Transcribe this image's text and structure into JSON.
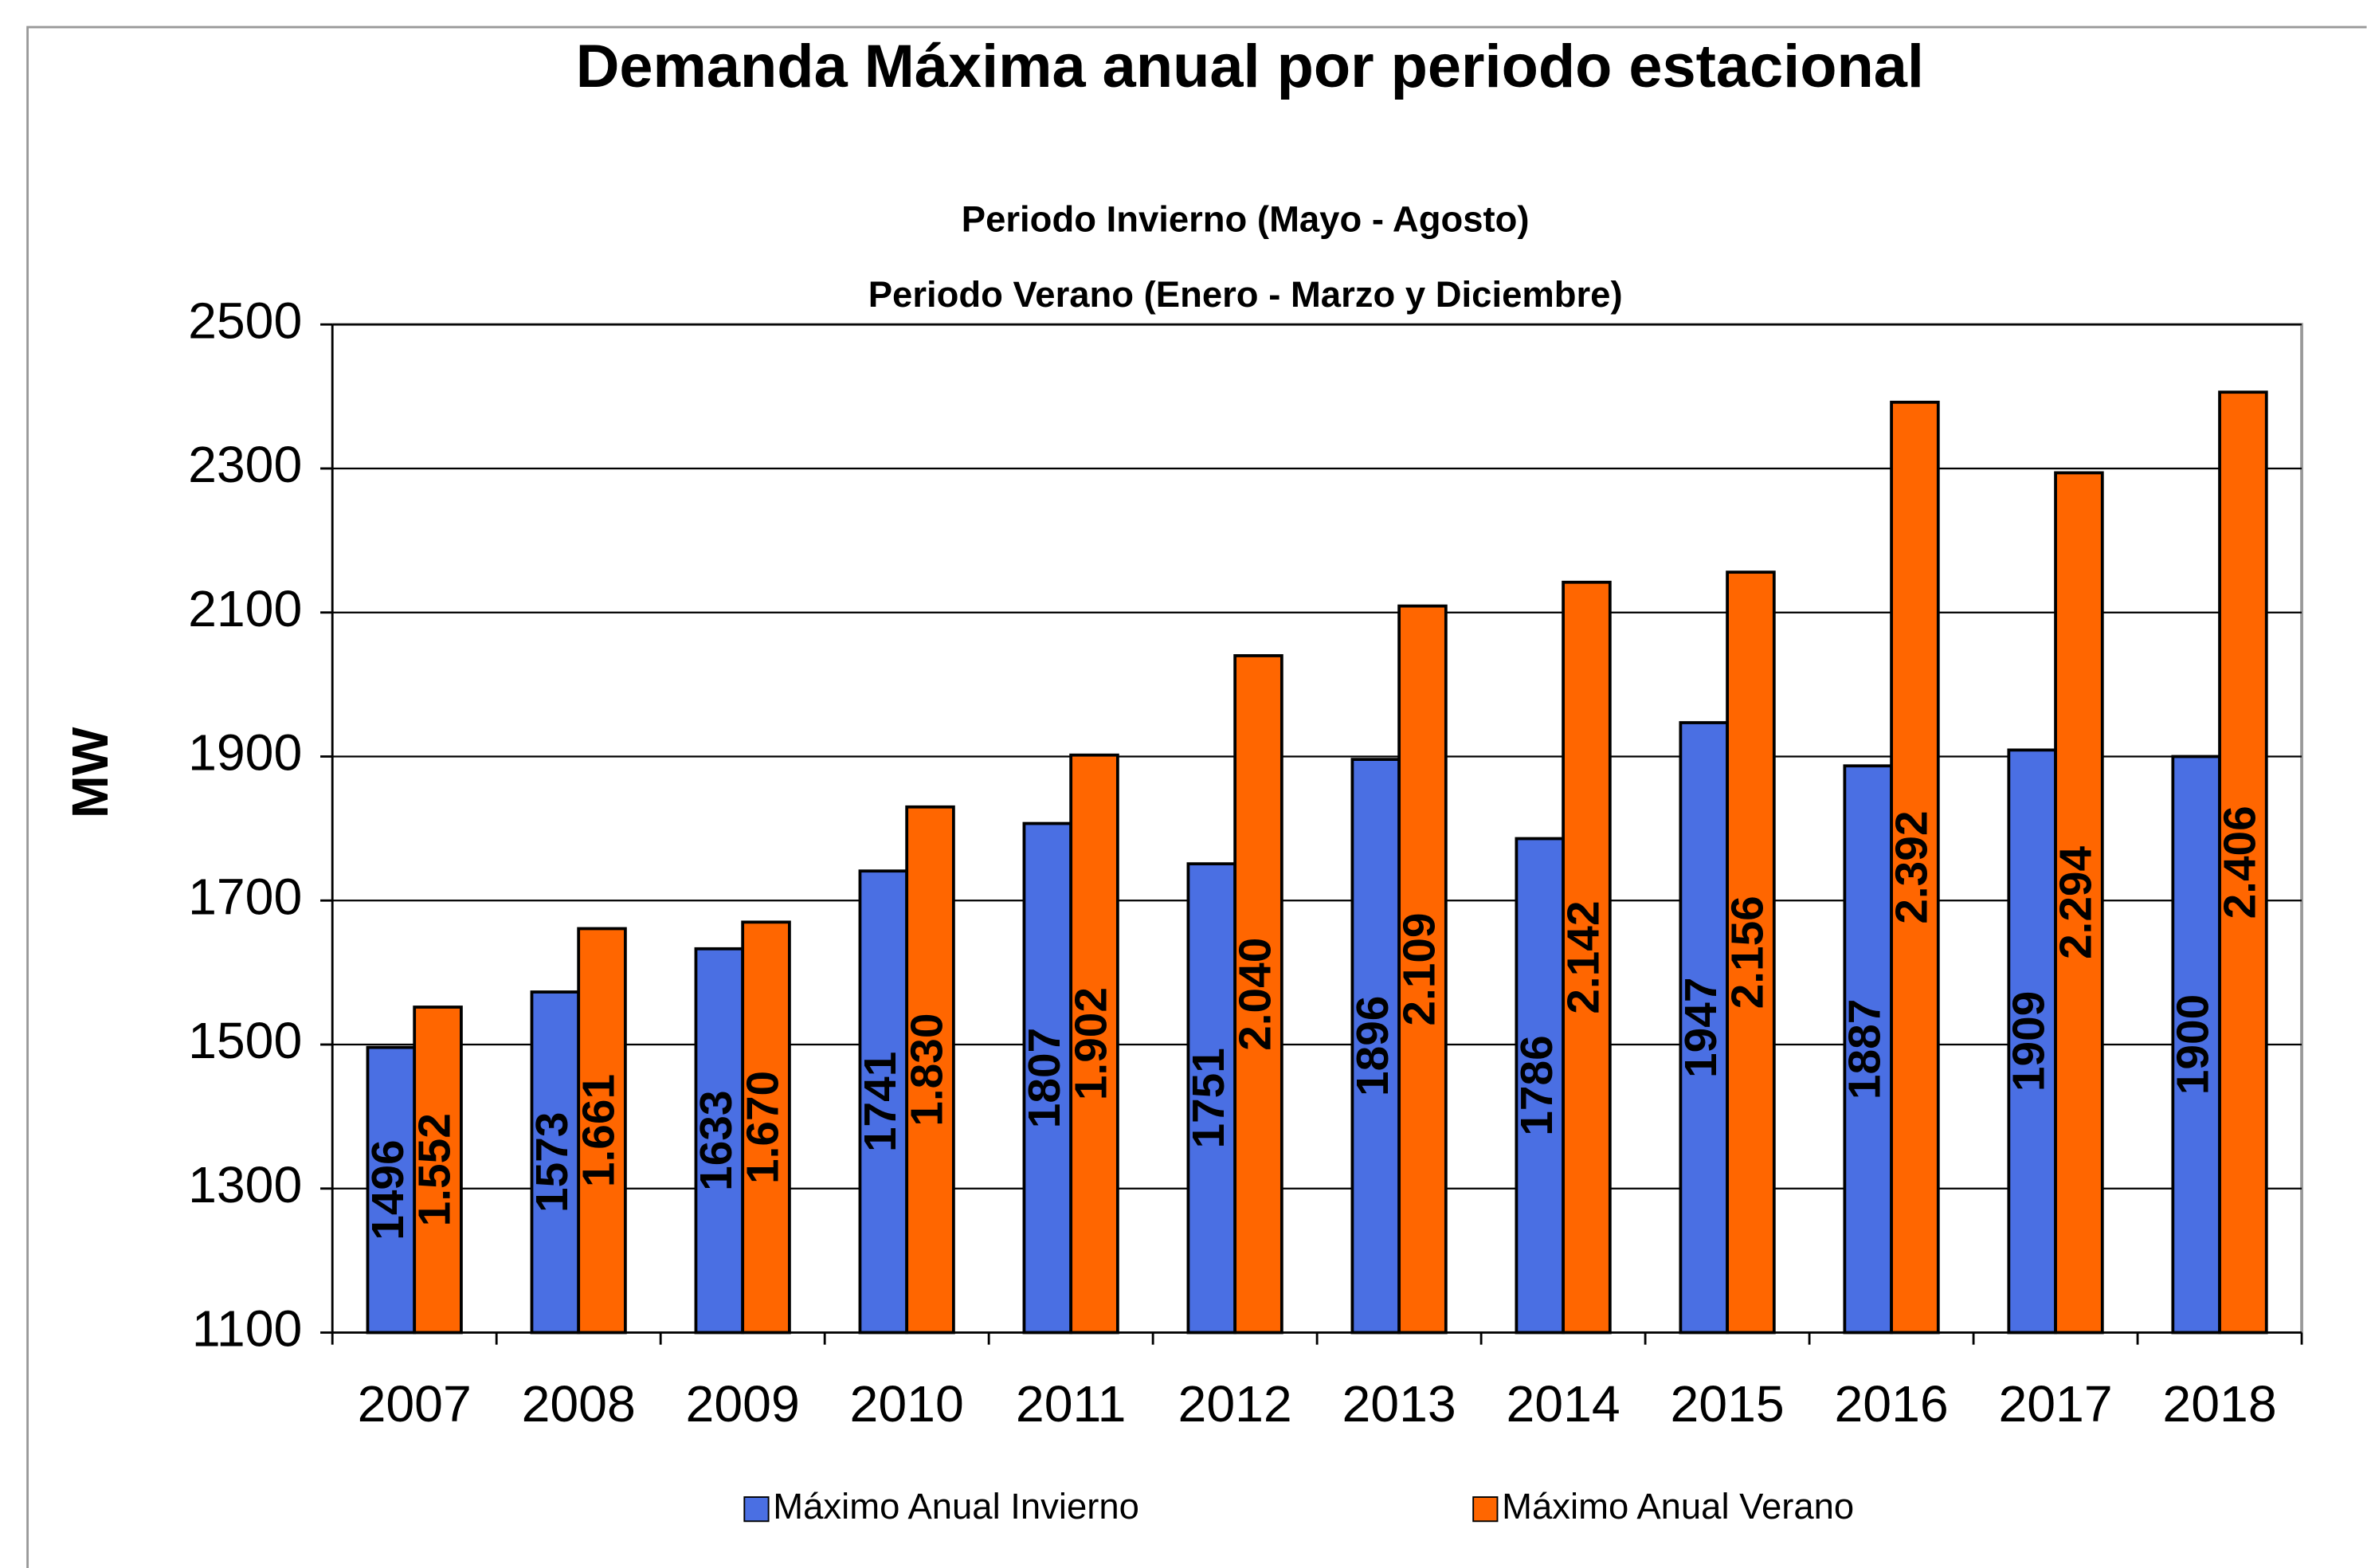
{
  "chart_data": {
    "type": "bar",
    "title": "Demanda Máxima anual por periodo estacional",
    "subtitle": [
      "Periodo Invierno (Mayo - Agosto)",
      "Periodo Verano (Enero - Marzo y Diciembre)"
    ],
    "y_label": "MW",
    "categories": [
      "2007",
      "2008",
      "2009",
      "2010",
      "2011",
      "2012",
      "2013",
      "2014",
      "2015",
      "2016",
      "2017",
      "2018"
    ],
    "series": [
      {
        "name": "Máximo Anual Invierno",
        "color": "#4a6fe3",
        "values": [
          1496,
          1573,
          1633,
          1741,
          1807,
          1751,
          1896,
          1786,
          1947,
          1887,
          1909,
          1900
        ]
      },
      {
        "name": "Máximo Anual Verano",
        "color": "#ff6600",
        "values": [
          1552,
          1661,
          1670,
          1830,
          1902,
          2040,
          2109,
          2142,
          2156,
          2392,
          2294,
          2406
        ],
        "value_labels": [
          "1.552",
          "1.661",
          "1.670",
          "1.830",
          "1.902",
          "2.040",
          "2.109",
          "2.142",
          "2.156",
          "2.392",
          "2.294",
          "2.406"
        ]
      }
    ],
    "ylim": [
      1100,
      2500
    ],
    "yticks": [
      1100,
      1300,
      1500,
      1700,
      1900,
      2100,
      2300,
      2500
    ],
    "grid": true,
    "legend": "bottom"
  }
}
